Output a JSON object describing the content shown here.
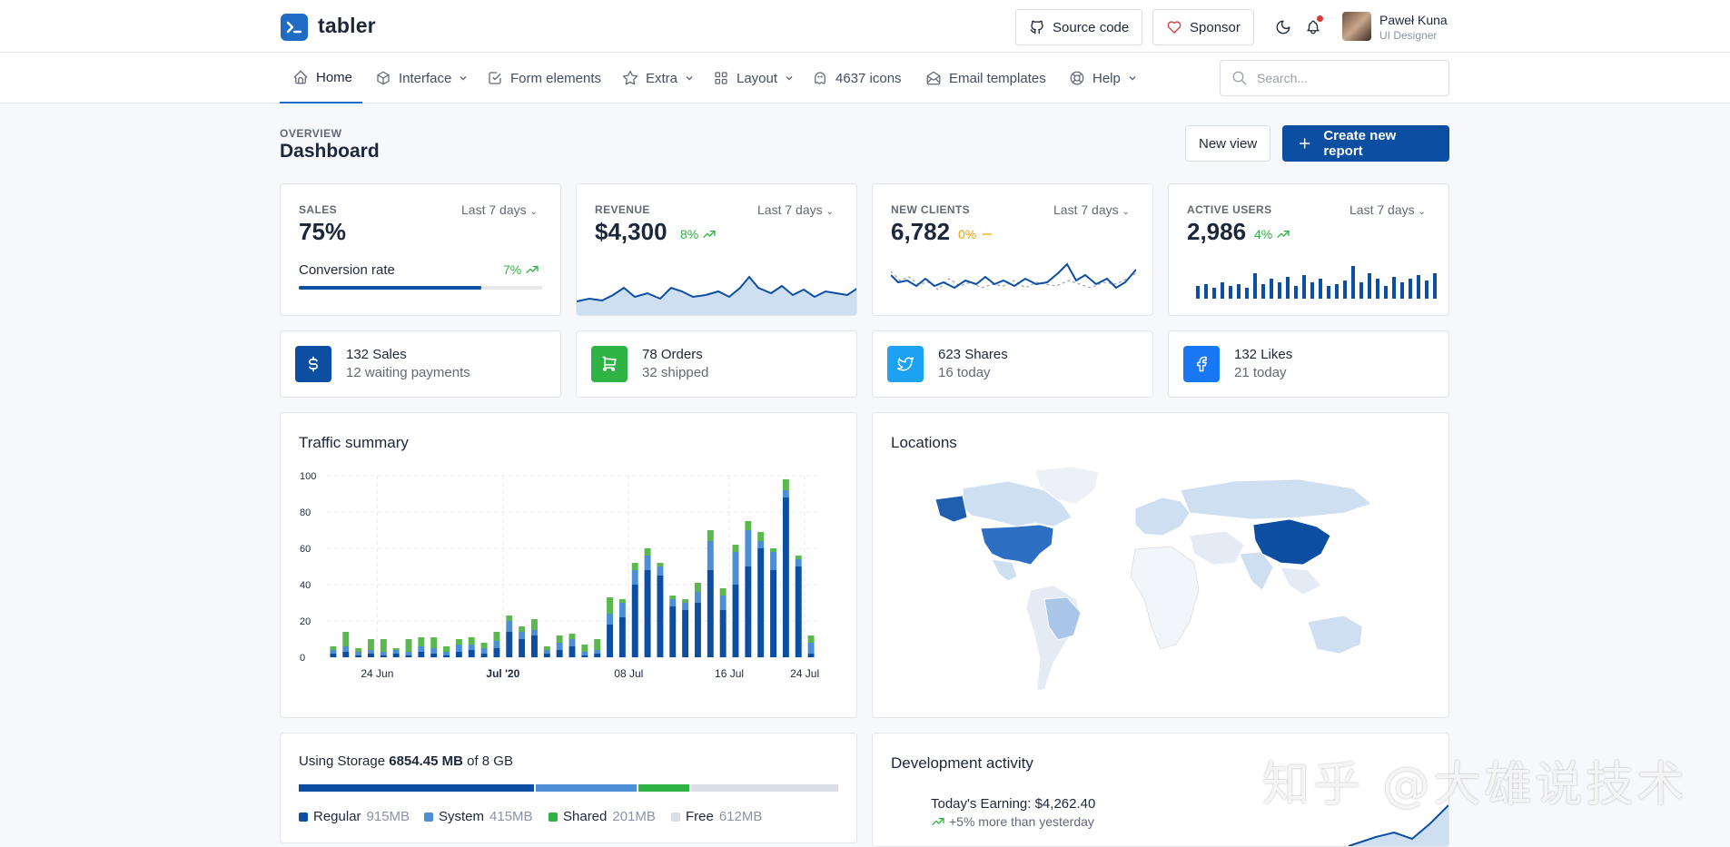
{
  "brand": {
    "name": "tabler"
  },
  "header": {
    "source_code": "Source code",
    "sponsor": "Sponsor",
    "user": {
      "name": "Paweł Kuna",
      "role": "UI Designer"
    }
  },
  "nav": {
    "items": [
      {
        "label": "Home",
        "icon": "home-icon",
        "caret": false
      },
      {
        "label": "Interface",
        "icon": "package-icon",
        "caret": true
      },
      {
        "label": "Form elements",
        "icon": "checkbox-icon",
        "caret": false
      },
      {
        "label": "Extra",
        "icon": "star-icon",
        "caret": true
      },
      {
        "label": "Layout",
        "icon": "layout-icon",
        "caret": true
      },
      {
        "label": "4637 icons",
        "icon": "ghost-icon",
        "caret": false
      },
      {
        "label": "Email templates",
        "icon": "mail-icon",
        "caret": false
      },
      {
        "label": "Help",
        "icon": "lifebuoy-icon",
        "caret": true
      }
    ],
    "search_placeholder": "Search..."
  },
  "page": {
    "pretitle": "Overview",
    "title": "Dashboard",
    "new_view": "New view",
    "create_report": "Create new report"
  },
  "kpis": {
    "sales": {
      "label": "Sales",
      "period": "Last 7 days",
      "value": "75%",
      "conversion_label": "Conversion rate",
      "conversion_delta": "7%",
      "progress": 0.75
    },
    "revenue": {
      "label": "Revenue",
      "period": "Last 7 days",
      "value": "$4,300",
      "delta": "8%"
    },
    "clients": {
      "label": "New clients",
      "period": "Last 7 days",
      "value": "6,782",
      "delta": "0%"
    },
    "users": {
      "label": "Active users",
      "period": "Last 7 days",
      "value": "2,986",
      "delta": "4%"
    }
  },
  "stats": [
    {
      "line1": "132 Sales",
      "line2": "12 waiting payments",
      "icon": "dollar-icon",
      "color": "#0b4ea2"
    },
    {
      "line1": "78 Orders",
      "line2": "32 shipped",
      "icon": "cart-icon",
      "color": "#2fb344"
    },
    {
      "line1": "623 Shares",
      "line2": "16 today",
      "icon": "twitter-icon",
      "color": "#1da1f2"
    },
    {
      "line1": "132 Likes",
      "line2": "21 today",
      "icon": "facebook-icon",
      "color": "#1877f2"
    }
  ],
  "traffic": {
    "title": "Traffic summary",
    "chart_data": {
      "type": "bar",
      "stacked": true,
      "x_ticks": [
        "24 Jun",
        "Jul '20",
        "08 Jul",
        "16 Jul",
        "24 Jul"
      ],
      "y_ticks": [
        0,
        20,
        40,
        60,
        80,
        100
      ],
      "ylim": [
        0,
        100
      ],
      "grid": true,
      "colors": [
        "#0b4ea2",
        "#4d8fd6",
        "#5ab84e"
      ],
      "series": [
        {
          "values": [
            2,
            3,
            1,
            2,
            1,
            2,
            1,
            3,
            2,
            1,
            3,
            4,
            2,
            5,
            14,
            10,
            12,
            2,
            4,
            6,
            1,
            2,
            18,
            22,
            40,
            48,
            45,
            28,
            26,
            30,
            48,
            26,
            40,
            50,
            60,
            48,
            88,
            50,
            2
          ]
        },
        {
          "values": [
            2,
            3,
            2,
            2,
            2,
            2,
            2,
            3,
            3,
            2,
            4,
            3,
            3,
            4,
            6,
            4,
            3,
            2,
            4,
            4,
            2,
            2,
            6,
            8,
            8,
            8,
            5,
            4,
            4,
            6,
            16,
            8,
            18,
            20,
            4,
            10,
            4,
            4,
            6
          ]
        },
        {
          "values": [
            2,
            8,
            2,
            6,
            7,
            1,
            7,
            5,
            6,
            3,
            3,
            4,
            3,
            5,
            3,
            3,
            6,
            2,
            4,
            3,
            4,
            6,
            9,
            2,
            4,
            4,
            2,
            2,
            2,
            5,
            6,
            4,
            4,
            5,
            5,
            2,
            6,
            2,
            4
          ]
        }
      ]
    }
  },
  "locations": {
    "title": "Locations"
  },
  "storage": {
    "prefix": "Using Storage",
    "amount": "6854.45 MB",
    "suffix": "of 8 GB",
    "segments": [
      {
        "label": "Regular",
        "value": "915MB",
        "color": "#0b4ea2",
        "fraction": 0.44
      },
      {
        "label": "System",
        "value": "415MB",
        "color": "#4d8fd6",
        "fraction": 0.19
      },
      {
        "label": "Shared",
        "value": "201MB",
        "color": "#2fb344",
        "fraction": 0.095
      },
      {
        "label": "Free",
        "value": "612MB",
        "color": "#dadfe5",
        "fraction": 0.275
      }
    ]
  },
  "activity": {
    "title": "Development activity",
    "earning": "Today's Earning: $4,262.40",
    "delta": "+5% more than yesterday"
  },
  "watermark": "知乎 @大雄说技术"
}
